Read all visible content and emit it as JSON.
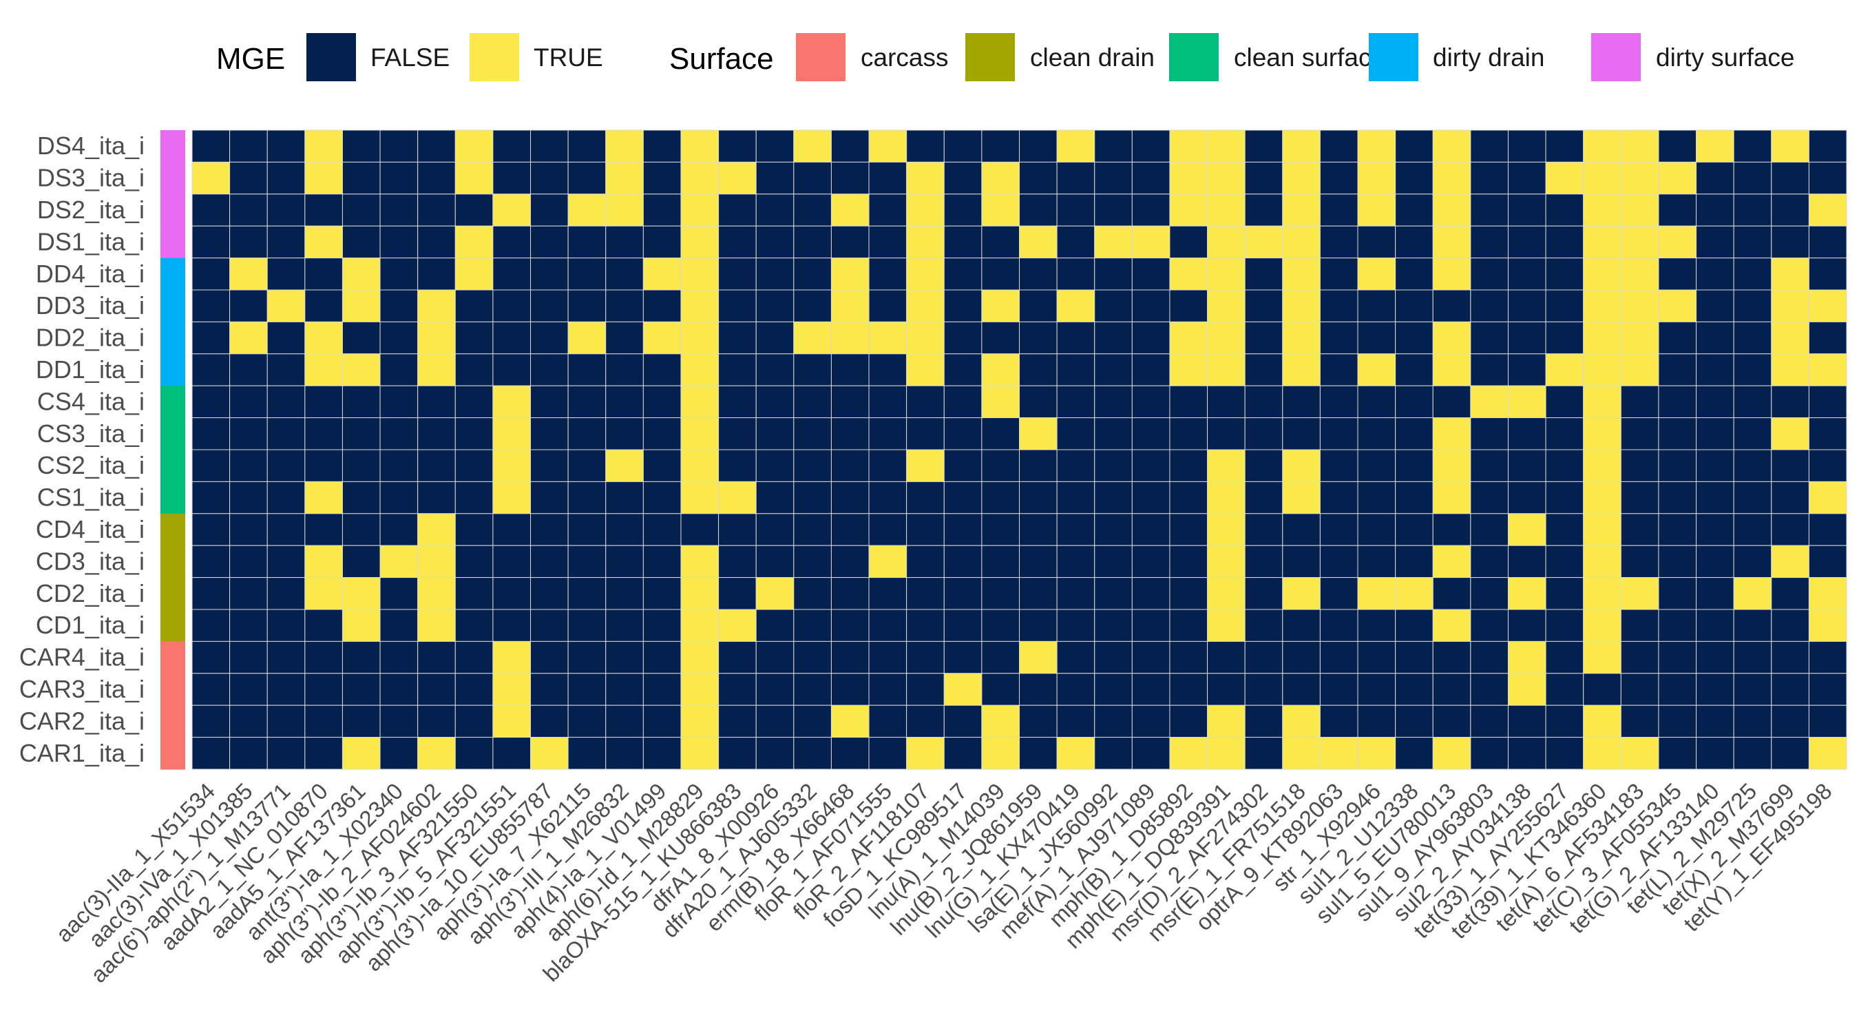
{
  "chart_data": {
    "type": "heatmap",
    "legend": {
      "mge": {
        "title": "MGE",
        "entries": [
          {
            "label": "FALSE",
            "color": "#03204F"
          },
          {
            "label": "TRUE",
            "color": "#FBE84A"
          }
        ]
      },
      "surface": {
        "title": "Surface",
        "entries": [
          {
            "label": "carcass",
            "color": "#F8766D"
          },
          {
            "label": "clean drain",
            "color": "#A3A500"
          },
          {
            "label": "clean surface",
            "color": "#00BF7D"
          },
          {
            "label": "dirty drain",
            "color": "#00B0F6"
          },
          {
            "label": "dirty surface",
            "color": "#E76BF3"
          }
        ]
      },
      "placement": "top"
    },
    "columns": [
      "aac(3)-IIa_1_X51534",
      "aac(3)-IVa_1_X01385",
      "aac(6')-aph(2'')_1_M13771",
      "aadA2_1_NC_010870",
      "aadA5_1_AF137361",
      "ant(3'')-Ia_1_X02340",
      "aph(3'')-Ib_2_AF024602",
      "aph(3'')-Ib_3_AF321550",
      "aph(3'')-Ib_5_AF321551",
      "aph(3')-Ia_10_EU855787",
      "aph(3')-Ia_7_X62115",
      "aph(3')-III_1_M26832",
      "aph(4)-Ia_1_V01499",
      "aph(6)-Id_1_M28829",
      "blaOXA-515_1_KU866383",
      "dfrA1_8_X00926",
      "dfrA20_1_AJ605332",
      "erm(B)_18_X66468",
      "floR_1_AF071555",
      "floR_2_AF118107",
      "fosD_1_KC989517",
      "lnu(A)_1_M14039",
      "lnu(B)_2_JQ861959",
      "lnu(G)_1_KX470419",
      "lsa(E)_1_JX560992",
      "mef(A)_1_AJ971089",
      "mph(B)_1_D85892",
      "mph(E)_1_DQ839391",
      "msr(D)_2_AF274302",
      "msr(E)_1_FR751518",
      "optrA_9_KT892063",
      "str_1_X92946",
      "sul1_2_U12338",
      "sul1_5_EU780013",
      "sul1_9_AY963803",
      "sul2_2_AY034138",
      "tet(33)_1_AY255627",
      "tet(39)_1_KT346360",
      "tet(A)_6_AF534183",
      "tet(C)_3_AF055345",
      "tet(G)_2_AF133140",
      "tet(L)_2_M29725",
      "tet(X)_2_M37699",
      "tet(Y)_1_EF495198"
    ],
    "rows": [
      {
        "label": "DS4_ita_i",
        "surface": "dirty surface",
        "values": [
          0,
          0,
          0,
          1,
          0,
          0,
          0,
          1,
          0,
          0,
          0,
          1,
          0,
          1,
          0,
          0,
          1,
          0,
          1,
          0,
          0,
          0,
          0,
          1,
          0,
          0,
          1,
          1,
          0,
          1,
          0,
          1,
          0,
          1,
          0,
          0,
          0,
          1,
          1,
          0,
          1,
          0,
          1,
          0
        ]
      },
      {
        "label": "DS3_ita_i",
        "surface": "dirty surface",
        "values": [
          1,
          0,
          0,
          1,
          0,
          0,
          0,
          1,
          0,
          0,
          0,
          1,
          0,
          1,
          1,
          0,
          0,
          0,
          0,
          1,
          0,
          1,
          0,
          0,
          0,
          0,
          1,
          1,
          0,
          1,
          0,
          1,
          0,
          1,
          0,
          0,
          1,
          1,
          1,
          1,
          0,
          0,
          0,
          0
        ]
      },
      {
        "label": "DS2_ita_i",
        "surface": "dirty surface",
        "values": [
          0,
          0,
          0,
          0,
          0,
          0,
          0,
          0,
          1,
          0,
          1,
          1,
          0,
          1,
          0,
          0,
          0,
          1,
          0,
          1,
          0,
          1,
          0,
          0,
          0,
          0,
          1,
          1,
          0,
          1,
          0,
          1,
          0,
          1,
          0,
          0,
          0,
          1,
          1,
          0,
          0,
          0,
          0,
          1
        ]
      },
      {
        "label": "DS1_ita_i",
        "surface": "dirty surface",
        "values": [
          0,
          0,
          0,
          1,
          0,
          0,
          0,
          1,
          0,
          0,
          0,
          0,
          0,
          1,
          0,
          0,
          0,
          0,
          0,
          1,
          0,
          0,
          1,
          0,
          1,
          1,
          0,
          1,
          1,
          1,
          0,
          0,
          0,
          1,
          0,
          0,
          0,
          1,
          1,
          1,
          0,
          0,
          0,
          0
        ]
      },
      {
        "label": "DD4_ita_i",
        "surface": "dirty drain",
        "values": [
          0,
          1,
          0,
          0,
          1,
          0,
          0,
          1,
          0,
          0,
          0,
          0,
          1,
          1,
          0,
          0,
          0,
          1,
          0,
          1,
          0,
          0,
          0,
          0,
          0,
          0,
          1,
          1,
          0,
          1,
          0,
          1,
          0,
          1,
          0,
          0,
          0,
          1,
          1,
          0,
          0,
          0,
          1,
          0
        ]
      },
      {
        "label": "DD3_ita_i",
        "surface": "dirty drain",
        "values": [
          0,
          0,
          1,
          0,
          1,
          0,
          1,
          0,
          0,
          0,
          0,
          0,
          0,
          1,
          0,
          0,
          0,
          1,
          0,
          1,
          0,
          1,
          0,
          1,
          0,
          0,
          0,
          1,
          0,
          1,
          0,
          0,
          0,
          0,
          0,
          0,
          0,
          1,
          1,
          1,
          0,
          0,
          1,
          1
        ]
      },
      {
        "label": "DD2_ita_i",
        "surface": "dirty drain",
        "values": [
          0,
          1,
          0,
          1,
          0,
          0,
          1,
          0,
          0,
          0,
          1,
          0,
          1,
          1,
          0,
          0,
          1,
          1,
          1,
          1,
          0,
          0,
          0,
          0,
          0,
          0,
          1,
          1,
          0,
          1,
          0,
          0,
          0,
          1,
          0,
          0,
          0,
          1,
          1,
          0,
          0,
          0,
          1,
          0
        ]
      },
      {
        "label": "DD1_ita_i",
        "surface": "dirty drain",
        "values": [
          0,
          0,
          0,
          1,
          1,
          0,
          1,
          0,
          0,
          0,
          0,
          0,
          0,
          1,
          0,
          0,
          0,
          0,
          0,
          1,
          0,
          1,
          0,
          0,
          0,
          0,
          1,
          1,
          0,
          1,
          0,
          1,
          0,
          1,
          0,
          0,
          1,
          1,
          1,
          0,
          0,
          0,
          1,
          1
        ]
      },
      {
        "label": "CS4_ita_i",
        "surface": "clean surface",
        "values": [
          0,
          0,
          0,
          0,
          0,
          0,
          0,
          0,
          1,
          0,
          0,
          0,
          0,
          1,
          0,
          0,
          0,
          0,
          0,
          0,
          0,
          1,
          0,
          0,
          0,
          0,
          0,
          0,
          0,
          0,
          0,
          0,
          0,
          0,
          1,
          1,
          0,
          1,
          0,
          0,
          0,
          0,
          0,
          0
        ]
      },
      {
        "label": "CS3_ita_i",
        "surface": "clean surface",
        "values": [
          0,
          0,
          0,
          0,
          0,
          0,
          0,
          0,
          1,
          0,
          0,
          0,
          0,
          1,
          0,
          0,
          0,
          0,
          0,
          0,
          0,
          0,
          1,
          0,
          0,
          0,
          0,
          0,
          0,
          0,
          0,
          0,
          0,
          1,
          0,
          0,
          0,
          1,
          0,
          0,
          0,
          0,
          1,
          0
        ]
      },
      {
        "label": "CS2_ita_i",
        "surface": "clean surface",
        "values": [
          0,
          0,
          0,
          0,
          0,
          0,
          0,
          0,
          1,
          0,
          0,
          1,
          0,
          1,
          0,
          0,
          0,
          0,
          0,
          1,
          0,
          0,
          0,
          0,
          0,
          0,
          0,
          1,
          0,
          1,
          0,
          0,
          0,
          1,
          0,
          0,
          0,
          1,
          0,
          0,
          0,
          0,
          0,
          0
        ]
      },
      {
        "label": "CS1_ita_i",
        "surface": "clean surface",
        "values": [
          0,
          0,
          0,
          1,
          0,
          0,
          0,
          0,
          1,
          0,
          0,
          0,
          0,
          1,
          1,
          0,
          0,
          0,
          0,
          0,
          0,
          0,
          0,
          0,
          0,
          0,
          0,
          1,
          0,
          1,
          0,
          0,
          0,
          1,
          0,
          0,
          0,
          1,
          0,
          0,
          0,
          0,
          0,
          1
        ]
      },
      {
        "label": "CD4_ita_i",
        "surface": "clean drain",
        "values": [
          0,
          0,
          0,
          0,
          0,
          0,
          1,
          0,
          0,
          0,
          0,
          0,
          0,
          0,
          0,
          0,
          0,
          0,
          0,
          0,
          0,
          0,
          0,
          0,
          0,
          0,
          0,
          1,
          0,
          0,
          0,
          0,
          0,
          0,
          0,
          1,
          0,
          1,
          0,
          0,
          0,
          0,
          0,
          0
        ]
      },
      {
        "label": "CD3_ita_i",
        "surface": "clean drain",
        "values": [
          0,
          0,
          0,
          1,
          0,
          1,
          1,
          0,
          0,
          0,
          0,
          0,
          0,
          1,
          0,
          0,
          0,
          0,
          1,
          0,
          0,
          0,
          0,
          0,
          0,
          0,
          0,
          1,
          0,
          0,
          0,
          0,
          0,
          1,
          0,
          0,
          0,
          1,
          0,
          0,
          0,
          0,
          1,
          0
        ]
      },
      {
        "label": "CD2_ita_i",
        "surface": "clean drain",
        "values": [
          0,
          0,
          0,
          1,
          1,
          0,
          1,
          0,
          0,
          0,
          0,
          0,
          0,
          1,
          0,
          1,
          0,
          0,
          0,
          0,
          0,
          0,
          0,
          0,
          0,
          0,
          0,
          1,
          0,
          1,
          0,
          1,
          1,
          0,
          0,
          1,
          0,
          1,
          1,
          0,
          0,
          1,
          0,
          1
        ]
      },
      {
        "label": "CD1_ita_i",
        "surface": "clean drain",
        "values": [
          0,
          0,
          0,
          0,
          1,
          0,
          1,
          0,
          0,
          0,
          0,
          0,
          0,
          1,
          1,
          0,
          0,
          0,
          0,
          0,
          0,
          0,
          0,
          0,
          0,
          0,
          0,
          1,
          0,
          0,
          0,
          0,
          0,
          1,
          0,
          0,
          0,
          1,
          0,
          0,
          0,
          0,
          0,
          1
        ]
      },
      {
        "label": "CAR4_ita_i",
        "surface": "carcass",
        "values": [
          0,
          0,
          0,
          0,
          0,
          0,
          0,
          0,
          1,
          0,
          0,
          0,
          0,
          1,
          0,
          0,
          0,
          0,
          0,
          0,
          0,
          0,
          1,
          0,
          0,
          0,
          0,
          0,
          0,
          0,
          0,
          0,
          0,
          0,
          0,
          1,
          0,
          1,
          0,
          0,
          0,
          0,
          0,
          0
        ]
      },
      {
        "label": "CAR3_ita_i",
        "surface": "carcass",
        "values": [
          0,
          0,
          0,
          0,
          0,
          0,
          0,
          0,
          1,
          0,
          0,
          0,
          0,
          1,
          0,
          0,
          0,
          0,
          0,
          0,
          1,
          0,
          0,
          0,
          0,
          0,
          0,
          0,
          0,
          0,
          0,
          0,
          0,
          0,
          0,
          1,
          0,
          0,
          0,
          0,
          0,
          0,
          0,
          0
        ]
      },
      {
        "label": "CAR2_ita_i",
        "surface": "carcass",
        "values": [
          0,
          0,
          0,
          0,
          0,
          0,
          0,
          0,
          1,
          0,
          0,
          0,
          0,
          1,
          0,
          0,
          0,
          1,
          0,
          0,
          0,
          1,
          0,
          0,
          0,
          0,
          0,
          1,
          0,
          1,
          0,
          0,
          0,
          0,
          0,
          0,
          0,
          1,
          0,
          0,
          0,
          0,
          0,
          0
        ]
      },
      {
        "label": "CAR1_ita_i",
        "surface": "carcass",
        "values": [
          0,
          0,
          0,
          0,
          1,
          0,
          1,
          0,
          0,
          1,
          0,
          0,
          0,
          1,
          0,
          0,
          0,
          0,
          0,
          1,
          0,
          1,
          0,
          1,
          0,
          0,
          1,
          1,
          0,
          1,
          1,
          1,
          0,
          1,
          0,
          0,
          0,
          1,
          1,
          0,
          0,
          0,
          0,
          1
        ]
      }
    ]
  }
}
